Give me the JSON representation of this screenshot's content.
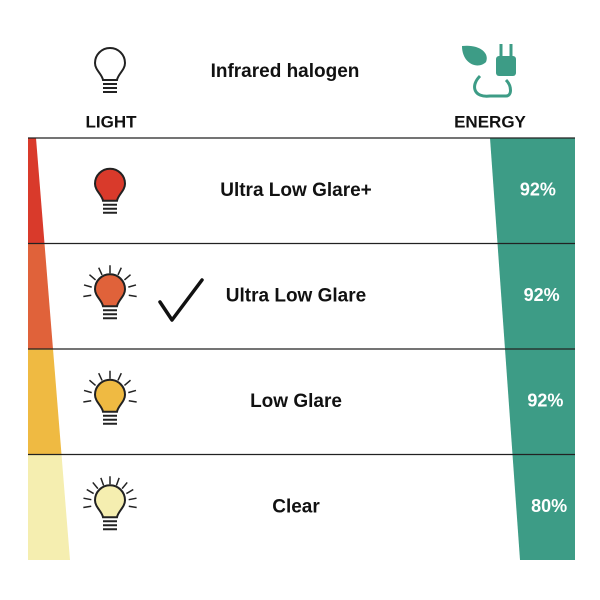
{
  "header": {
    "title": "Infrared halogen",
    "light_label": "LIGHT",
    "energy_label": "ENERGY"
  },
  "rows": [
    {
      "label": "Ultra Low Glare+",
      "energy": "92%"
    },
    {
      "label": "Ultra Low Glare",
      "energy": "92%"
    },
    {
      "label": "Low Glare",
      "energy": "92%"
    },
    {
      "label": "Clear",
      "energy": "80%"
    }
  ]
}
